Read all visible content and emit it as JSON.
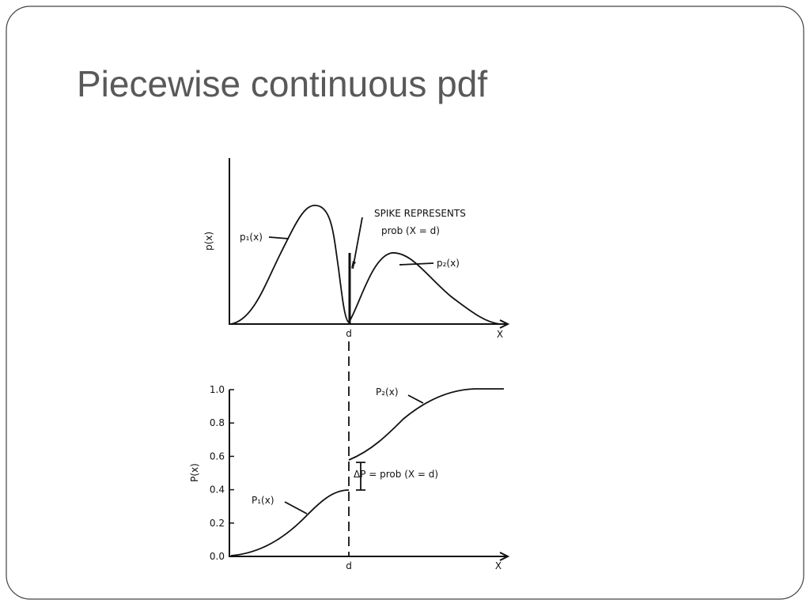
{
  "title": "Piecewise continuous pdf",
  "top_plot": {
    "y_label": "p(x)",
    "x_label": "X",
    "d_label": "d",
    "curve_labels": [
      "p₁(x)",
      "p₂(x)"
    ],
    "annotation": [
      "SPIKE REPRESENTS",
      "prob (X = d)"
    ]
  },
  "bottom_plot": {
    "y_label": "P(x)",
    "x_label": "X",
    "d_label": "d",
    "yticks": [
      "0.0",
      "0.2",
      "0.4",
      "0.6",
      "0.8",
      "1.0"
    ],
    "curve_labels": [
      "P₁(x)",
      "P₂(x)"
    ],
    "annotation": "ΔP = prob (X = d)"
  }
}
